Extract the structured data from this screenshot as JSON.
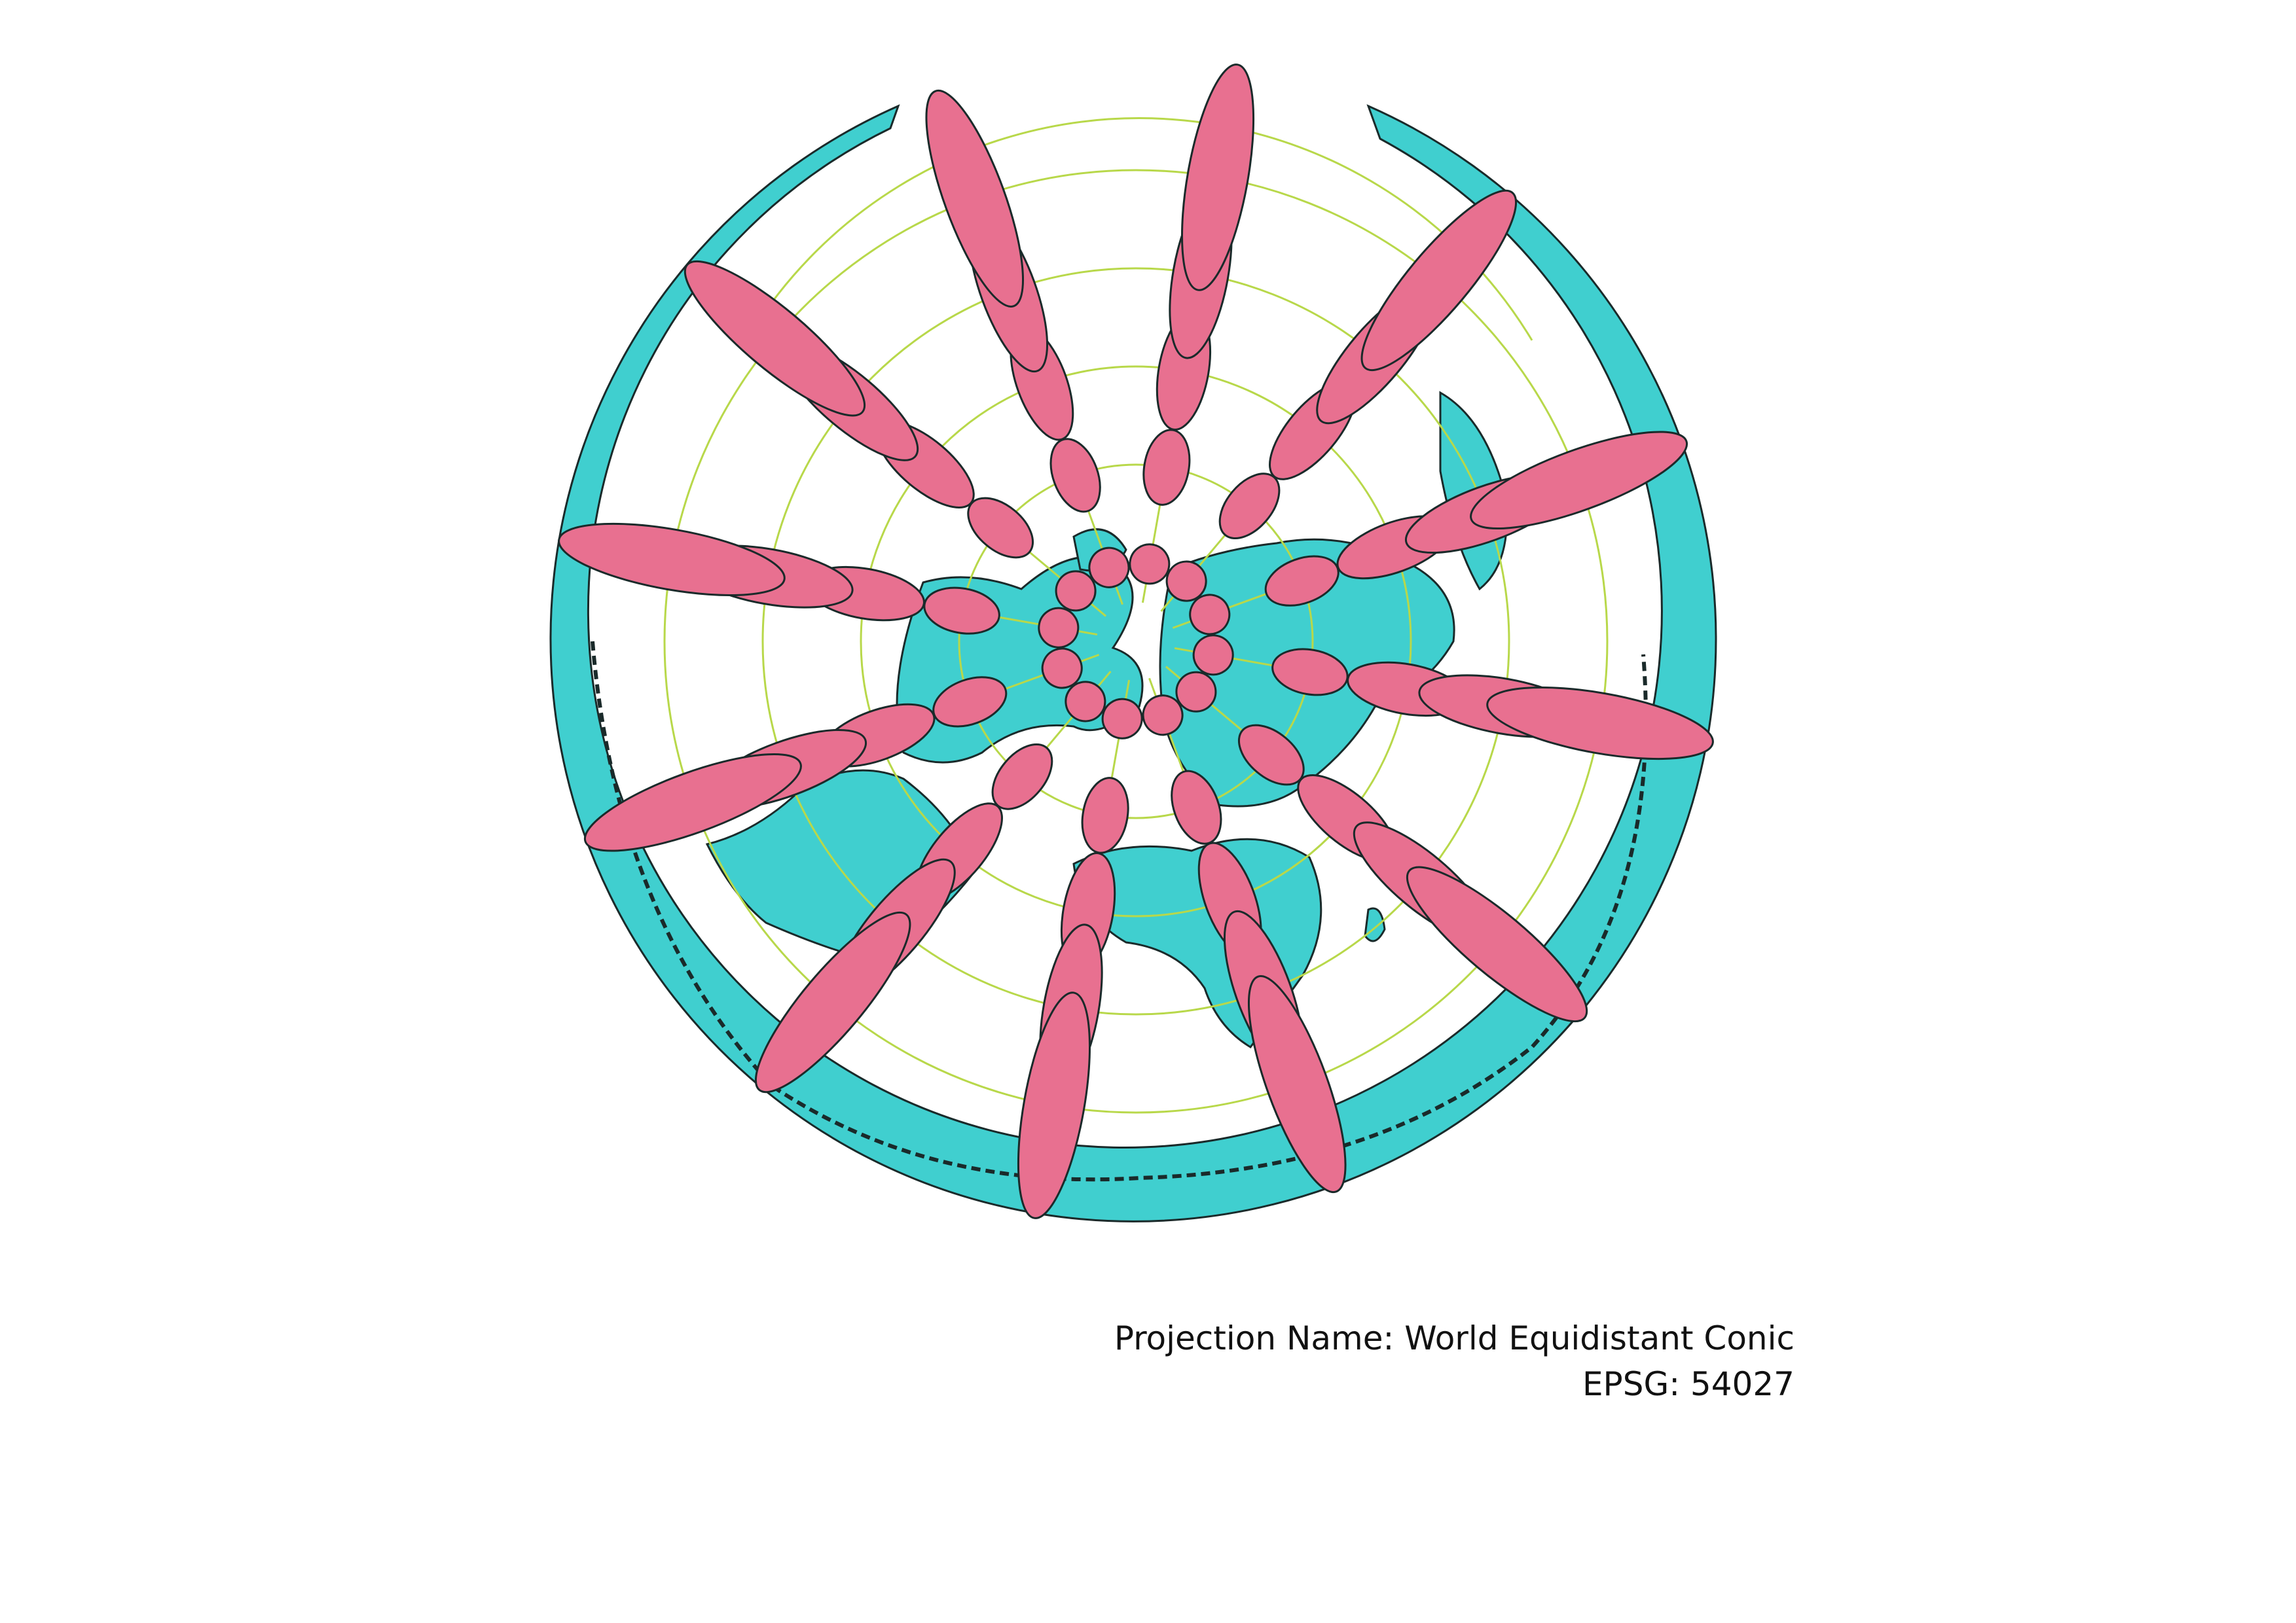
{
  "map": {
    "projection_name_label": "Projection Name: World Equidistant Conic",
    "epsg_label": "EPSG: 54027",
    "layers": [
      "land-and-ocean-outline",
      "country-borders",
      "graticule",
      "tissot-indicatrix"
    ],
    "colors": {
      "land": "#40cfcf",
      "outline": "#1a2a2a",
      "tissot": "#e87090",
      "graticule": "#b8d84a",
      "background": "#ffffff"
    }
  }
}
